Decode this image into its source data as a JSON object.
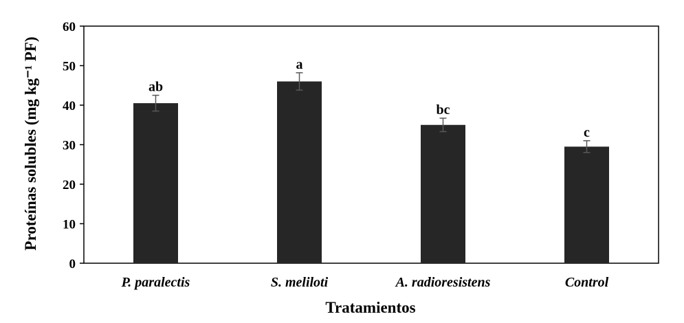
{
  "chart_data": {
    "type": "bar",
    "title": "",
    "xlabel": "Tratamientos",
    "ylabel": "Proteínas solubles (mg kg⁻¹ PF)",
    "categories": [
      "P. paralectis",
      "S. meliloti",
      "A. radioresistens",
      "Control"
    ],
    "values": [
      40.5,
      46.0,
      35.0,
      29.5
    ],
    "errors": [
      2.0,
      2.2,
      1.7,
      1.5
    ],
    "letters": [
      "ab",
      "a",
      "bc",
      "c"
    ],
    "ylim": [
      0,
      60
    ],
    "yticks": [
      0,
      10,
      20,
      30,
      40,
      50,
      60
    ],
    "grid": false,
    "legend": "none",
    "bar_color": "#262626",
    "error_color": "#595959"
  }
}
